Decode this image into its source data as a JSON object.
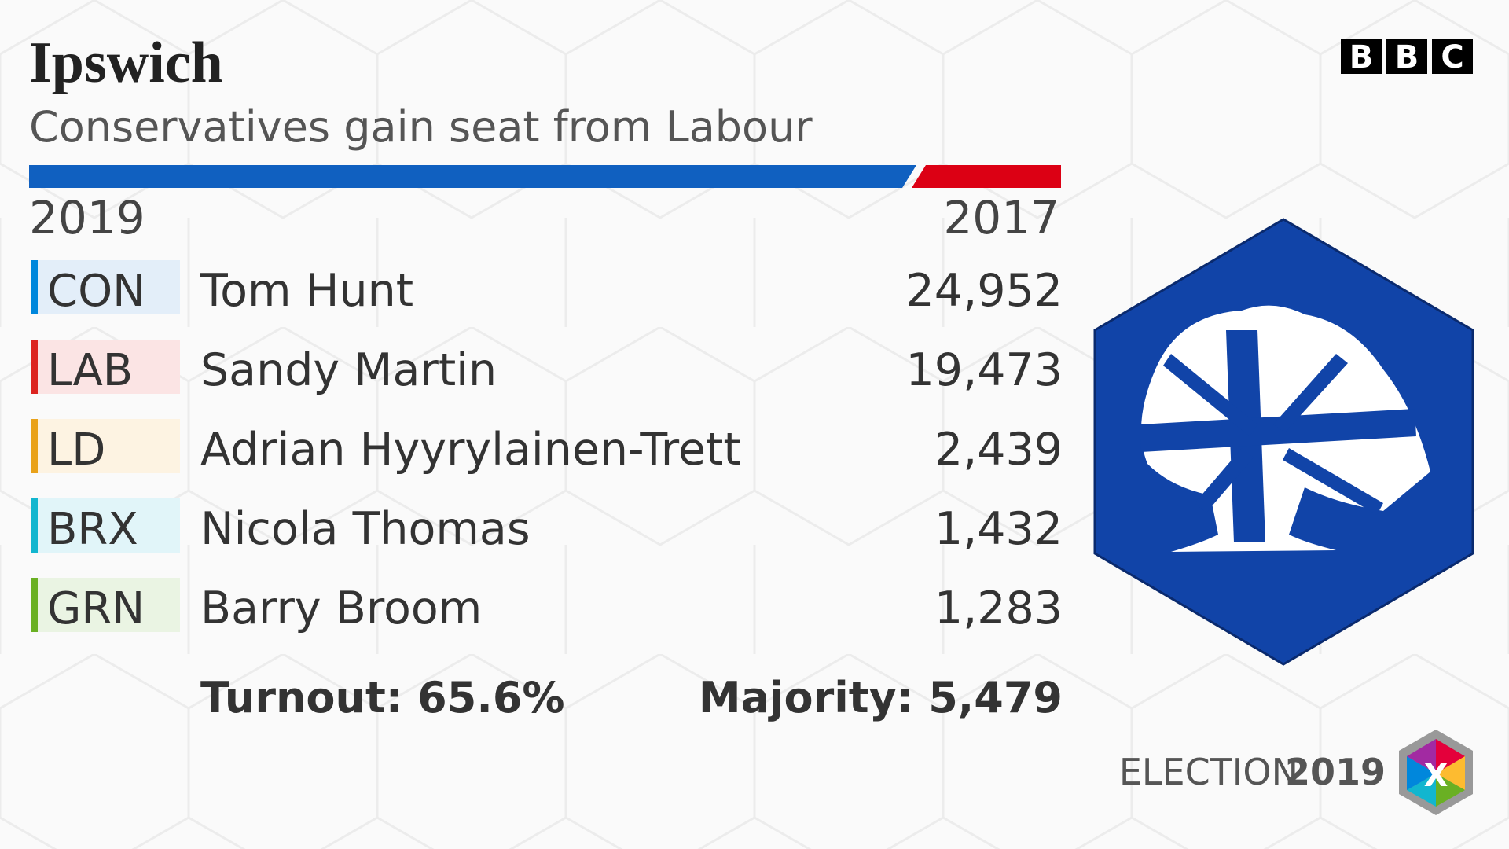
{
  "brand": {
    "letters": [
      "B",
      "B",
      "C"
    ]
  },
  "header": {
    "title": "Ipswich",
    "subtitle": "Conservatives gain seat from Labour"
  },
  "bar": {
    "left_year": "2019",
    "right_year": "2017"
  },
  "table": {
    "rows": [
      {
        "party": "CON",
        "candidate": "Tom Hunt",
        "votes": "24,952",
        "color": "#0087dc",
        "tint": "#e3eef9"
      },
      {
        "party": "LAB",
        "candidate": "Sandy Martin",
        "votes": "19,473",
        "color": "#dc241f",
        "tint": "#fbe4e4"
      },
      {
        "party": "LD",
        "candidate": "Adrian Hyyrylainen-Trett",
        "votes": "2,439",
        "color": "#e9a21a",
        "tint": "#fdf3e2"
      },
      {
        "party": "BRX",
        "candidate": "Nicola Thomas",
        "votes": "1,432",
        "color": "#12b6cf",
        "tint": "#e1f5f9"
      },
      {
        "party": "GRN",
        "candidate": "Barry Broom",
        "votes": "1,283",
        "color": "#6ab023",
        "tint": "#eaf4e3"
      }
    ]
  },
  "footer": {
    "turnout": "Turnout: 65.6%",
    "majority": "Majority: 5,479",
    "election": "ELECTION",
    "year": "2019",
    "badge": "X"
  }
}
